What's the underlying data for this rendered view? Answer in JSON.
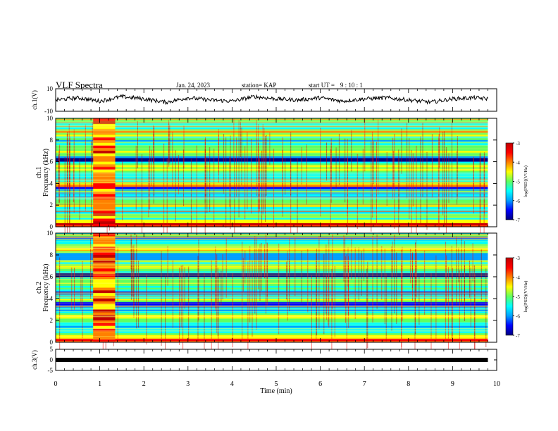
{
  "header": {
    "title": "VLF Spectra",
    "date": "Jan. 24, 2023",
    "station": "station= KAP",
    "start_label": "start  UT =",
    "start_value": "9 : 10 : 1"
  },
  "colors": {
    "waveform": "#000000",
    "colormap": [
      "#000080",
      "#0000ff",
      "#00a0ff",
      "#00ffff",
      "#60ff60",
      "#ffff00",
      "#ff8000",
      "#ff0000",
      "#c00000"
    ]
  },
  "chart_data": [
    {
      "type": "line",
      "panel": "ch1-waveform",
      "ylabel": "ch.1(V)",
      "ylim": [
        -10,
        10
      ],
      "yticklabels": [
        "10",
        "-10"
      ],
      "xlim": [
        0,
        10
      ],
      "x": [
        0.0,
        0.5,
        1.0,
        1.5,
        2.0,
        2.5,
        3.0,
        3.5,
        4.0,
        4.5,
        5.0,
        5.5,
        6.0,
        6.5,
        7.0,
        7.5,
        8.0,
        8.5,
        9.0,
        9.5,
        9.8
      ],
      "values": [
        0,
        2,
        -1,
        3,
        1,
        -2,
        2,
        0,
        -1,
        3,
        1,
        0,
        2,
        -1,
        1,
        2,
        0,
        -2,
        1,
        2,
        1
      ]
    },
    {
      "type": "heatmap",
      "panel": "ch1-spectrogram",
      "ylabel": "ch.1\nFrequency (kHz)",
      "ylim": [
        0,
        10
      ],
      "yticklabels": [
        "0",
        "2",
        "4",
        "6",
        "8",
        "10"
      ],
      "xlim": [
        0,
        10
      ],
      "colorbar": {
        "label": "log(PSD)(V²/Hz)",
        "range": [
          -7,
          -3
        ],
        "ticklabels": [
          "-3",
          "-4",
          "-5",
          "-6",
          "-7"
        ]
      },
      "burst_interval_min": [
        0.85,
        1.35
      ]
    },
    {
      "type": "heatmap",
      "panel": "ch2-spectrogram",
      "ylabel": "ch.2\nFrequency (kHz)",
      "ylim": [
        0,
        10
      ],
      "yticklabels": [
        "0",
        "2",
        "4",
        "6",
        "8",
        "10"
      ],
      "xlim": [
        0,
        10
      ],
      "colorbar": {
        "label": "log(PSD)(V²/Hz)",
        "range": [
          -7,
          -3
        ],
        "ticklabels": [
          "-3",
          "-4",
          "-5",
          "-6",
          "-7"
        ]
      },
      "burst_interval_min": [
        0.85,
        1.35
      ]
    },
    {
      "type": "line",
      "panel": "ch3-waveform",
      "ylabel": "ch.3(V)",
      "ylim": [
        -5,
        5
      ],
      "yticklabels": [
        "5",
        "0",
        "-5"
      ],
      "xlim": [
        0,
        10
      ],
      "x": [
        0,
        9.8
      ],
      "values": [
        0,
        0
      ]
    }
  ],
  "xaxis": {
    "label": "Time (min)",
    "ticklabels": [
      "0",
      "1",
      "2",
      "3",
      "4",
      "5",
      "6",
      "7",
      "8",
      "9",
      "10"
    ]
  }
}
